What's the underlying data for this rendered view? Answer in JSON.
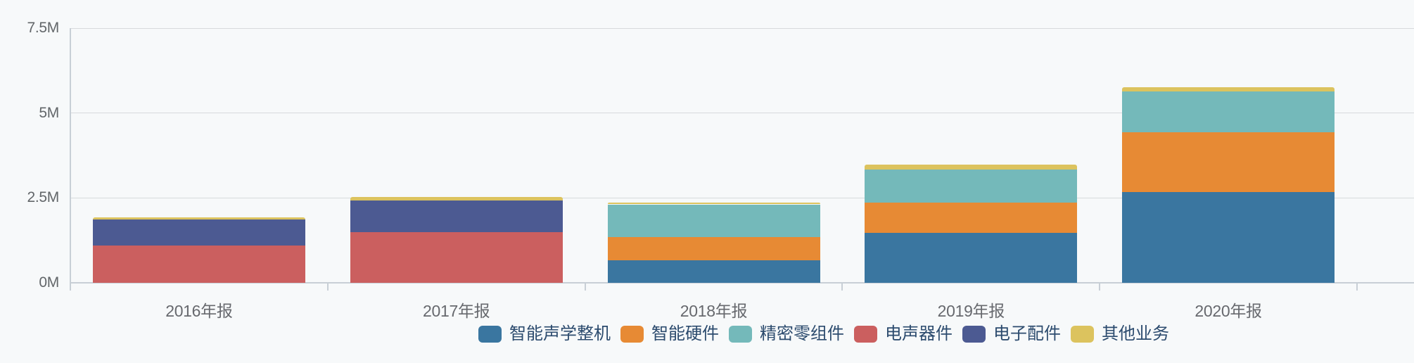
{
  "chart_data": {
    "type": "bar",
    "stacked": true,
    "title": "",
    "xlabel": "",
    "ylabel": "",
    "unit": "M",
    "ylim": [
      0,
      7.5
    ],
    "yticks": [
      {
        "value": 0,
        "label": "0M"
      },
      {
        "value": 2.5,
        "label": "2.5M"
      },
      {
        "value": 5,
        "label": "5M"
      },
      {
        "value": 7.5,
        "label": "7.5M"
      }
    ],
    "grid": true,
    "legend_position": "bottom",
    "categories": [
      "2016年报",
      "2017年报",
      "2018年报",
      "2019年报",
      "2020年报"
    ],
    "series": [
      {
        "name": "智能声学整机",
        "color": "#3a76a0",
        "values": [
          0,
          0,
          0.66,
          1.47,
          2.67
        ]
      },
      {
        "name": "智能硬件",
        "color": "#e78a34",
        "values": [
          0,
          0,
          0.68,
          0.89,
          1.76
        ]
      },
      {
        "name": "精密零组件",
        "color": "#74b9ba",
        "values": [
          0,
          0,
          0.97,
          0.97,
          1.2
        ]
      },
      {
        "name": "电声器件",
        "color": "#cb5f5f",
        "values": [
          1.1,
          1.5,
          0,
          0,
          0
        ]
      },
      {
        "name": "电子配件",
        "color": "#4c5a92",
        "values": [
          0.76,
          0.93,
          0,
          0,
          0
        ]
      },
      {
        "name": "其他业务",
        "color": "#dcc35e",
        "values": [
          0.06,
          0.1,
          0.06,
          0.15,
          0.14
        ]
      }
    ]
  }
}
